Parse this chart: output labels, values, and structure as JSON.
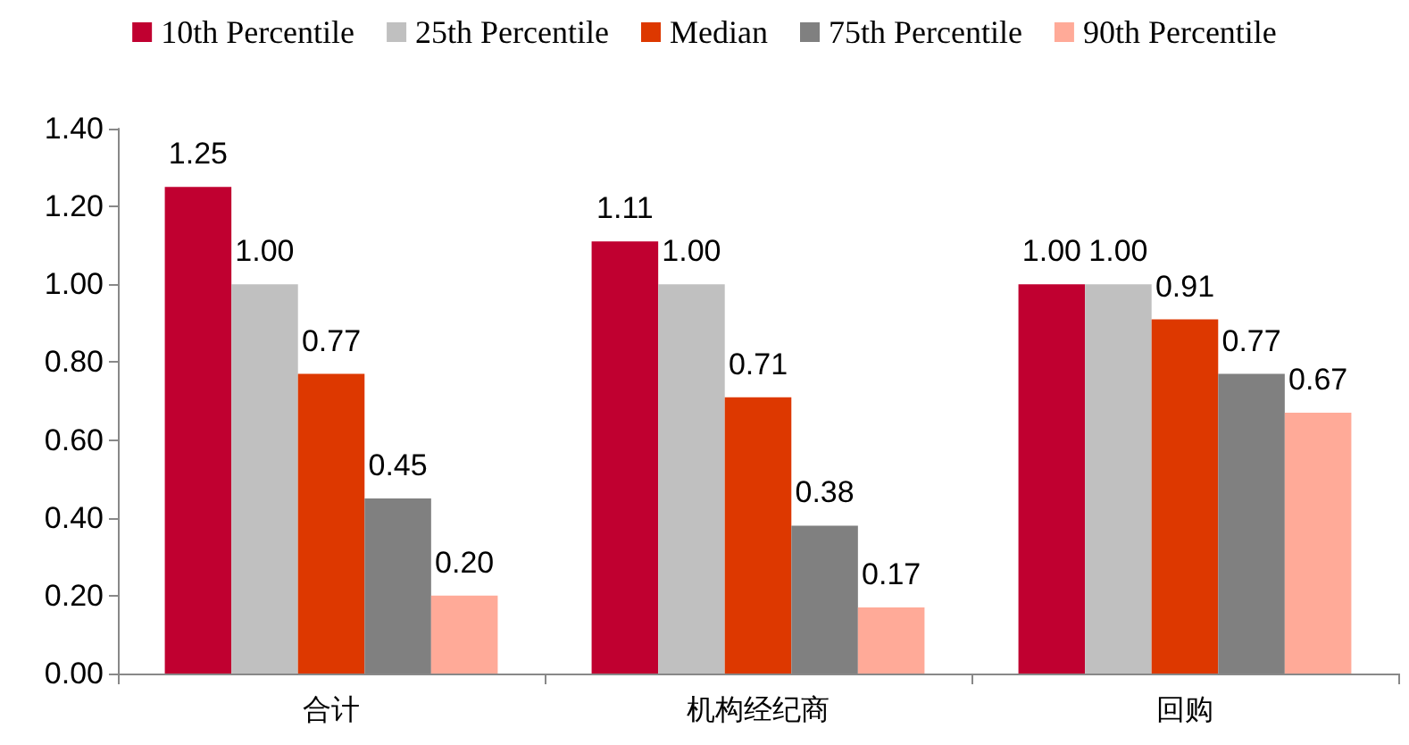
{
  "chart_data": {
    "type": "bar",
    "categories": [
      "合计",
      "机构经纪商",
      "回购"
    ],
    "series": [
      {
        "name": "10th Percentile",
        "color": "#c00030",
        "values": [
          1.25,
          1.11,
          1.0
        ],
        "value_labels": [
          "1.25",
          "1.11",
          "1.00"
        ]
      },
      {
        "name": "25th Percentile",
        "color": "#c0c0c0",
        "values": [
          1.0,
          1.0,
          1.0
        ],
        "value_labels": [
          "1.00",
          "1.00",
          "1.00"
        ]
      },
      {
        "name": "Median",
        "color": "#dd3800",
        "values": [
          0.77,
          0.71,
          0.91
        ],
        "value_labels": [
          "0.77",
          "0.71",
          "0.91"
        ]
      },
      {
        "name": "75th Percentile",
        "color": "#808080",
        "values": [
          0.45,
          0.38,
          0.77
        ],
        "value_labels": [
          "0.45",
          "0.38",
          "0.77"
        ]
      },
      {
        "name": "90th Percentile",
        "color": "#ffaa98",
        "values": [
          0.2,
          0.17,
          0.67
        ],
        "value_labels": [
          "0.20",
          "0.17",
          "0.67"
        ]
      }
    ],
    "ylim": [
      0,
      1.4
    ],
    "yticks": [
      {
        "value": 0,
        "label": "0.00"
      },
      {
        "value": 0.2,
        "label": "0.20"
      },
      {
        "value": 0.4,
        "label": "0.40"
      },
      {
        "value": 0.6,
        "label": "0.60"
      },
      {
        "value": 0.8,
        "label": "0.80"
      },
      {
        "value": 1.0,
        "label": "1.00"
      },
      {
        "value": 1.2,
        "label": "1.20"
      },
      {
        "value": 1.4,
        "label": "1.40"
      }
    ],
    "grid": false,
    "legend": "top"
  }
}
